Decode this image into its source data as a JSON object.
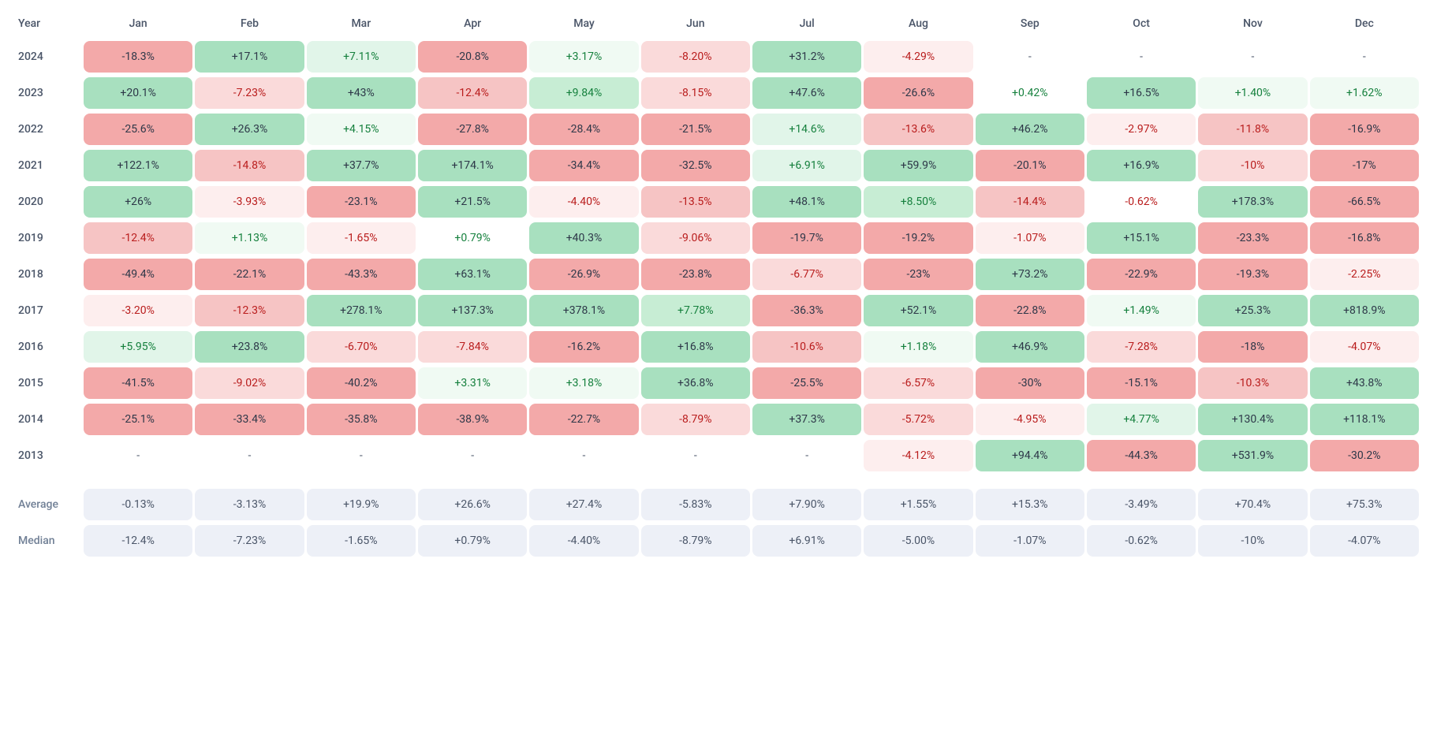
{
  "header": {
    "year_label": "Year"
  },
  "months": [
    "Jan",
    "Feb",
    "Mar",
    "Apr",
    "May",
    "Jun",
    "Jul",
    "Aug",
    "Sep",
    "Oct",
    "Nov",
    "Dec"
  ],
  "palette": {
    "green_strong": "#a8e0bf",
    "green_mid": "#c7edd4",
    "green_light": "#e1f5e9",
    "green_vlight": "#f0faf3",
    "red_strong": "#f3a9a9",
    "red_mid": "#f6c4c4",
    "red_light": "#fadada",
    "red_vlight": "#fdeeee",
    "text_dark": "#2d3748",
    "text_green": "#15803d",
    "text_red": "#b91c1c",
    "stat_bg": "#edf0f7",
    "empty_dash": "-"
  },
  "rows": [
    {
      "year": "2024",
      "cells": [
        {
          "v": "-18.3%",
          "bg": "#f3a9a9",
          "fg": "#2d3748"
        },
        {
          "v": "+17.1%",
          "bg": "#a8e0bf",
          "fg": "#2d3748"
        },
        {
          "v": "+7.11%",
          "bg": "#e1f5e9",
          "fg": "#15803d"
        },
        {
          "v": "-20.8%",
          "bg": "#f3a9a9",
          "fg": "#2d3748"
        },
        {
          "v": "+3.17%",
          "bg": "#f0faf3",
          "fg": "#15803d"
        },
        {
          "v": "-8.20%",
          "bg": "#fadada",
          "fg": "#b91c1c"
        },
        {
          "v": "+31.2%",
          "bg": "#a8e0bf",
          "fg": "#2d3748"
        },
        {
          "v": "-4.29%",
          "bg": "#fdeeee",
          "fg": "#b91c1c"
        },
        null,
        null,
        null,
        null
      ]
    },
    {
      "year": "2023",
      "cells": [
        {
          "v": "+20.1%",
          "bg": "#a8e0bf",
          "fg": "#2d3748"
        },
        {
          "v": "-7.23%",
          "bg": "#fadada",
          "fg": "#b91c1c"
        },
        {
          "v": "+43%",
          "bg": "#a8e0bf",
          "fg": "#2d3748"
        },
        {
          "v": "-12.4%",
          "bg": "#f6c4c4",
          "fg": "#b91c1c"
        },
        {
          "v": "+9.84%",
          "bg": "#c7edd4",
          "fg": "#15803d"
        },
        {
          "v": "-8.15%",
          "bg": "#fadada",
          "fg": "#b91c1c"
        },
        {
          "v": "+47.6%",
          "bg": "#a8e0bf",
          "fg": "#2d3748"
        },
        {
          "v": "-26.6%",
          "bg": "#f3a9a9",
          "fg": "#2d3748"
        },
        {
          "v": "+0.42%",
          "bg": "#ffffff",
          "fg": "#15803d"
        },
        {
          "v": "+16.5%",
          "bg": "#a8e0bf",
          "fg": "#2d3748"
        },
        {
          "v": "+1.40%",
          "bg": "#f0faf3",
          "fg": "#15803d"
        },
        {
          "v": "+1.62%",
          "bg": "#f0faf3",
          "fg": "#15803d"
        }
      ]
    },
    {
      "year": "2022",
      "cells": [
        {
          "v": "-25.6%",
          "bg": "#f3a9a9",
          "fg": "#2d3748"
        },
        {
          "v": "+26.3%",
          "bg": "#a8e0bf",
          "fg": "#2d3748"
        },
        {
          "v": "+4.15%",
          "bg": "#f0faf3",
          "fg": "#15803d"
        },
        {
          "v": "-27.8%",
          "bg": "#f3a9a9",
          "fg": "#2d3748"
        },
        {
          "v": "-28.4%",
          "bg": "#f3a9a9",
          "fg": "#2d3748"
        },
        {
          "v": "-21.5%",
          "bg": "#f3a9a9",
          "fg": "#2d3748"
        },
        {
          "v": "+14.6%",
          "bg": "#e1f5e9",
          "fg": "#15803d"
        },
        {
          "v": "-13.6%",
          "bg": "#f6c4c4",
          "fg": "#b91c1c"
        },
        {
          "v": "+46.2%",
          "bg": "#a8e0bf",
          "fg": "#2d3748"
        },
        {
          "v": "-2.97%",
          "bg": "#fdeeee",
          "fg": "#b91c1c"
        },
        {
          "v": "-11.8%",
          "bg": "#f6c4c4",
          "fg": "#b91c1c"
        },
        {
          "v": "-16.9%",
          "bg": "#f3a9a9",
          "fg": "#2d3748"
        }
      ]
    },
    {
      "year": "2021",
      "cells": [
        {
          "v": "+122.1%",
          "bg": "#a8e0bf",
          "fg": "#2d3748"
        },
        {
          "v": "-14.8%",
          "bg": "#f6c4c4",
          "fg": "#b91c1c"
        },
        {
          "v": "+37.7%",
          "bg": "#a8e0bf",
          "fg": "#2d3748"
        },
        {
          "v": "+174.1%",
          "bg": "#a8e0bf",
          "fg": "#2d3748"
        },
        {
          "v": "-34.4%",
          "bg": "#f3a9a9",
          "fg": "#2d3748"
        },
        {
          "v": "-32.5%",
          "bg": "#f3a9a9",
          "fg": "#2d3748"
        },
        {
          "v": "+6.91%",
          "bg": "#e1f5e9",
          "fg": "#15803d"
        },
        {
          "v": "+59.9%",
          "bg": "#a8e0bf",
          "fg": "#2d3748"
        },
        {
          "v": "-20.1%",
          "bg": "#f3a9a9",
          "fg": "#2d3748"
        },
        {
          "v": "+16.9%",
          "bg": "#a8e0bf",
          "fg": "#2d3748"
        },
        {
          "v": "-10%",
          "bg": "#fadada",
          "fg": "#b91c1c"
        },
        {
          "v": "-17%",
          "bg": "#f3a9a9",
          "fg": "#2d3748"
        }
      ]
    },
    {
      "year": "2020",
      "cells": [
        {
          "v": "+26%",
          "bg": "#a8e0bf",
          "fg": "#2d3748"
        },
        {
          "v": "-3.93%",
          "bg": "#fdeeee",
          "fg": "#b91c1c"
        },
        {
          "v": "-23.1%",
          "bg": "#f3a9a9",
          "fg": "#2d3748"
        },
        {
          "v": "+21.5%",
          "bg": "#a8e0bf",
          "fg": "#2d3748"
        },
        {
          "v": "-4.40%",
          "bg": "#fdeeee",
          "fg": "#b91c1c"
        },
        {
          "v": "-13.5%",
          "bg": "#f6c4c4",
          "fg": "#b91c1c"
        },
        {
          "v": "+48.1%",
          "bg": "#a8e0bf",
          "fg": "#2d3748"
        },
        {
          "v": "+8.50%",
          "bg": "#c7edd4",
          "fg": "#15803d"
        },
        {
          "v": "-14.4%",
          "bg": "#f6c4c4",
          "fg": "#b91c1c"
        },
        {
          "v": "-0.62%",
          "bg": "#ffffff",
          "fg": "#b91c1c"
        },
        {
          "v": "+178.3%",
          "bg": "#a8e0bf",
          "fg": "#2d3748"
        },
        {
          "v": "-66.5%",
          "bg": "#f3a9a9",
          "fg": "#2d3748"
        }
      ]
    },
    {
      "year": "2019",
      "cells": [
        {
          "v": "-12.4%",
          "bg": "#f6c4c4",
          "fg": "#b91c1c"
        },
        {
          "v": "+1.13%",
          "bg": "#f0faf3",
          "fg": "#15803d"
        },
        {
          "v": "-1.65%",
          "bg": "#fdeeee",
          "fg": "#b91c1c"
        },
        {
          "v": "+0.79%",
          "bg": "#ffffff",
          "fg": "#15803d"
        },
        {
          "v": "+40.3%",
          "bg": "#a8e0bf",
          "fg": "#2d3748"
        },
        {
          "v": "-9.06%",
          "bg": "#fadada",
          "fg": "#b91c1c"
        },
        {
          "v": "-19.7%",
          "bg": "#f3a9a9",
          "fg": "#2d3748"
        },
        {
          "v": "-19.2%",
          "bg": "#f3a9a9",
          "fg": "#2d3748"
        },
        {
          "v": "-1.07%",
          "bg": "#fdeeee",
          "fg": "#b91c1c"
        },
        {
          "v": "+15.1%",
          "bg": "#a8e0bf",
          "fg": "#2d3748"
        },
        {
          "v": "-23.3%",
          "bg": "#f3a9a9",
          "fg": "#2d3748"
        },
        {
          "v": "-16.8%",
          "bg": "#f3a9a9",
          "fg": "#2d3748"
        }
      ]
    },
    {
      "year": "2018",
      "cells": [
        {
          "v": "-49.4%",
          "bg": "#f3a9a9",
          "fg": "#2d3748"
        },
        {
          "v": "-22.1%",
          "bg": "#f3a9a9",
          "fg": "#2d3748"
        },
        {
          "v": "-43.3%",
          "bg": "#f3a9a9",
          "fg": "#2d3748"
        },
        {
          "v": "+63.1%",
          "bg": "#a8e0bf",
          "fg": "#2d3748"
        },
        {
          "v": "-26.9%",
          "bg": "#f3a9a9",
          "fg": "#2d3748"
        },
        {
          "v": "-23.8%",
          "bg": "#f3a9a9",
          "fg": "#2d3748"
        },
        {
          "v": "-6.77%",
          "bg": "#fadada",
          "fg": "#b91c1c"
        },
        {
          "v": "-23%",
          "bg": "#f3a9a9",
          "fg": "#2d3748"
        },
        {
          "v": "+73.2%",
          "bg": "#a8e0bf",
          "fg": "#2d3748"
        },
        {
          "v": "-22.9%",
          "bg": "#f3a9a9",
          "fg": "#2d3748"
        },
        {
          "v": "-19.3%",
          "bg": "#f3a9a9",
          "fg": "#2d3748"
        },
        {
          "v": "-2.25%",
          "bg": "#fdeeee",
          "fg": "#b91c1c"
        }
      ]
    },
    {
      "year": "2017",
      "cells": [
        {
          "v": "-3.20%",
          "bg": "#fdeeee",
          "fg": "#b91c1c"
        },
        {
          "v": "-12.3%",
          "bg": "#f6c4c4",
          "fg": "#b91c1c"
        },
        {
          "v": "+278.1%",
          "bg": "#a8e0bf",
          "fg": "#2d3748"
        },
        {
          "v": "+137.3%",
          "bg": "#a8e0bf",
          "fg": "#2d3748"
        },
        {
          "v": "+378.1%",
          "bg": "#a8e0bf",
          "fg": "#2d3748"
        },
        {
          "v": "+7.78%",
          "bg": "#c7edd4",
          "fg": "#15803d"
        },
        {
          "v": "-36.3%",
          "bg": "#f3a9a9",
          "fg": "#2d3748"
        },
        {
          "v": "+52.1%",
          "bg": "#a8e0bf",
          "fg": "#2d3748"
        },
        {
          "v": "-22.8%",
          "bg": "#f3a9a9",
          "fg": "#2d3748"
        },
        {
          "v": "+1.49%",
          "bg": "#f0faf3",
          "fg": "#15803d"
        },
        {
          "v": "+25.3%",
          "bg": "#a8e0bf",
          "fg": "#2d3748"
        },
        {
          "v": "+818.9%",
          "bg": "#a8e0bf",
          "fg": "#2d3748"
        }
      ]
    },
    {
      "year": "2016",
      "cells": [
        {
          "v": "+5.95%",
          "bg": "#e1f5e9",
          "fg": "#15803d"
        },
        {
          "v": "+23.8%",
          "bg": "#a8e0bf",
          "fg": "#2d3748"
        },
        {
          "v": "-6.70%",
          "bg": "#fadada",
          "fg": "#b91c1c"
        },
        {
          "v": "-7.84%",
          "bg": "#fadada",
          "fg": "#b91c1c"
        },
        {
          "v": "-16.2%",
          "bg": "#f3a9a9",
          "fg": "#2d3748"
        },
        {
          "v": "+16.8%",
          "bg": "#a8e0bf",
          "fg": "#2d3748"
        },
        {
          "v": "-10.6%",
          "bg": "#f6c4c4",
          "fg": "#b91c1c"
        },
        {
          "v": "+1.18%",
          "bg": "#f0faf3",
          "fg": "#15803d"
        },
        {
          "v": "+46.9%",
          "bg": "#a8e0bf",
          "fg": "#2d3748"
        },
        {
          "v": "-7.28%",
          "bg": "#fadada",
          "fg": "#b91c1c"
        },
        {
          "v": "-18%",
          "bg": "#f3a9a9",
          "fg": "#2d3748"
        },
        {
          "v": "-4.07%",
          "bg": "#fdeeee",
          "fg": "#b91c1c"
        }
      ]
    },
    {
      "year": "2015",
      "cells": [
        {
          "v": "-41.5%",
          "bg": "#f3a9a9",
          "fg": "#2d3748"
        },
        {
          "v": "-9.02%",
          "bg": "#fadada",
          "fg": "#b91c1c"
        },
        {
          "v": "-40.2%",
          "bg": "#f3a9a9",
          "fg": "#2d3748"
        },
        {
          "v": "+3.31%",
          "bg": "#f0faf3",
          "fg": "#15803d"
        },
        {
          "v": "+3.18%",
          "bg": "#f0faf3",
          "fg": "#15803d"
        },
        {
          "v": "+36.8%",
          "bg": "#a8e0bf",
          "fg": "#2d3748"
        },
        {
          "v": "-25.5%",
          "bg": "#f3a9a9",
          "fg": "#2d3748"
        },
        {
          "v": "-6.57%",
          "bg": "#fadada",
          "fg": "#b91c1c"
        },
        {
          "v": "-30%",
          "bg": "#f3a9a9",
          "fg": "#2d3748"
        },
        {
          "v": "-15.1%",
          "bg": "#f3a9a9",
          "fg": "#2d3748"
        },
        {
          "v": "-10.3%",
          "bg": "#f6c4c4",
          "fg": "#b91c1c"
        },
        {
          "v": "+43.8%",
          "bg": "#a8e0bf",
          "fg": "#2d3748"
        }
      ]
    },
    {
      "year": "2014",
      "cells": [
        {
          "v": "-25.1%",
          "bg": "#f3a9a9",
          "fg": "#2d3748"
        },
        {
          "v": "-33.4%",
          "bg": "#f3a9a9",
          "fg": "#2d3748"
        },
        {
          "v": "-35.8%",
          "bg": "#f3a9a9",
          "fg": "#2d3748"
        },
        {
          "v": "-38.9%",
          "bg": "#f3a9a9",
          "fg": "#2d3748"
        },
        {
          "v": "-22.7%",
          "bg": "#f3a9a9",
          "fg": "#2d3748"
        },
        {
          "v": "-8.79%",
          "bg": "#fadada",
          "fg": "#b91c1c"
        },
        {
          "v": "+37.3%",
          "bg": "#a8e0bf",
          "fg": "#2d3748"
        },
        {
          "v": "-5.72%",
          "bg": "#fadada",
          "fg": "#b91c1c"
        },
        {
          "v": "-4.95%",
          "bg": "#fdeeee",
          "fg": "#b91c1c"
        },
        {
          "v": "+4.77%",
          "bg": "#e1f5e9",
          "fg": "#15803d"
        },
        {
          "v": "+130.4%",
          "bg": "#a8e0bf",
          "fg": "#2d3748"
        },
        {
          "v": "+118.1%",
          "bg": "#a8e0bf",
          "fg": "#2d3748"
        }
      ]
    },
    {
      "year": "2013",
      "cells": [
        null,
        null,
        null,
        null,
        null,
        null,
        null,
        {
          "v": "-4.12%",
          "bg": "#fdeeee",
          "fg": "#b91c1c"
        },
        {
          "v": "+94.4%",
          "bg": "#a8e0bf",
          "fg": "#2d3748"
        },
        {
          "v": "-44.3%",
          "bg": "#f3a9a9",
          "fg": "#2d3748"
        },
        {
          "v": "+531.9%",
          "bg": "#a8e0bf",
          "fg": "#2d3748"
        },
        {
          "v": "-30.2%",
          "bg": "#f3a9a9",
          "fg": "#2d3748"
        }
      ]
    }
  ],
  "stats": [
    {
      "label": "Average",
      "values": [
        "-0.13%",
        "-3.13%",
        "+19.9%",
        "+26.6%",
        "+27.4%",
        "-5.83%",
        "+7.90%",
        "+1.55%",
        "+15.3%",
        "-3.49%",
        "+70.4%",
        "+75.3%"
      ]
    },
    {
      "label": "Median",
      "values": [
        "-12.4%",
        "-7.23%",
        "-1.65%",
        "+0.79%",
        "-4.40%",
        "-8.79%",
        "+6.91%",
        "-5.00%",
        "-1.07%",
        "-0.62%",
        "-10%",
        "-4.07%"
      ]
    }
  ]
}
